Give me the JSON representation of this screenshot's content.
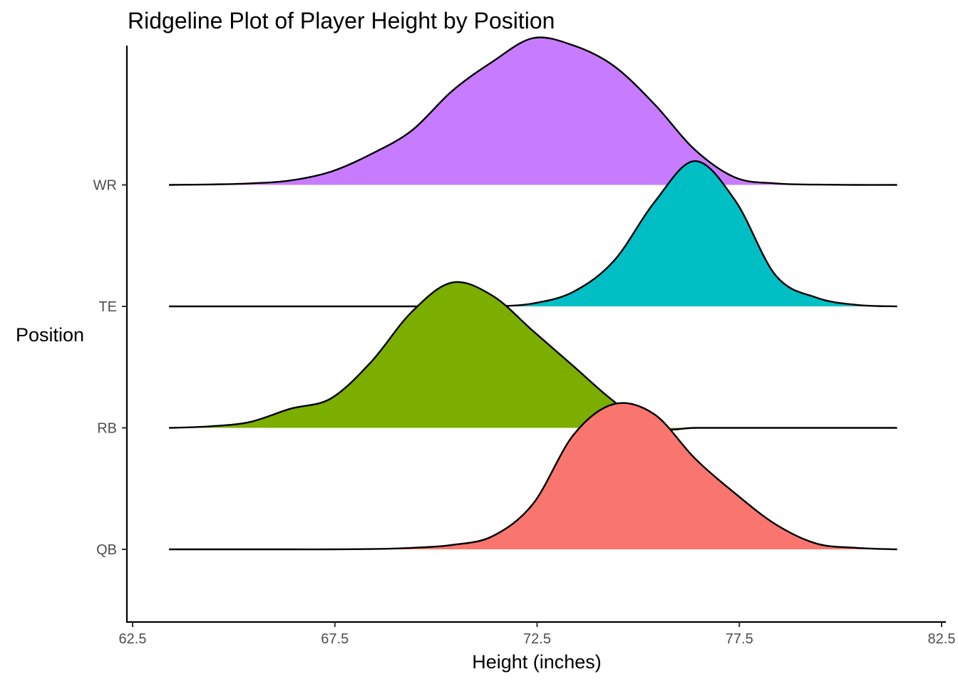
{
  "chart_data": {
    "type": "ridgeline",
    "title": "Ridgeline Plot of Player Height by Position",
    "xlabel": "Height (inches)",
    "ylabel": "Position",
    "xlim": [
      62.5,
      82.5
    ],
    "x_ticks": [
      "62.5",
      "67.5",
      "72.5",
      "77.5",
      "82.5"
    ],
    "x_tick_values": [
      62.5,
      67.5,
      72.5,
      77.5,
      82.5
    ],
    "grid": false,
    "legend": "none",
    "categories": [
      "QB",
      "RB",
      "TE",
      "WR"
    ],
    "x": [
      63.4,
      64.4,
      65.4,
      66.4,
      67.4,
      68.4,
      69.4,
      70.4,
      71.4,
      72.4,
      73.4,
      74.4,
      75.4,
      76.4,
      77.4,
      78.4,
      79.4,
      80.4,
      81.4
    ],
    "series": [
      {
        "name": "QB",
        "color": "#F8766D",
        "density": [
          0.0,
          0.0,
          0.0,
          0.0,
          0.0,
          0.002,
          0.01,
          0.03,
          0.09,
          0.31,
          0.78,
          0.99,
          0.92,
          0.62,
          0.38,
          0.17,
          0.04,
          0.01,
          0.0
        ]
      },
      {
        "name": "RB",
        "color": "#7CAE00",
        "density": [
          0.0,
          0.01,
          0.04,
          0.13,
          0.2,
          0.45,
          0.79,
          0.99,
          0.9,
          0.66,
          0.42,
          0.18,
          0.0,
          0.0,
          0.0,
          0.0,
          0.0,
          0.0,
          0.0
        ]
      },
      {
        "name": "TE",
        "color": "#00BFC4",
        "density": [
          0.0,
          0.0,
          0.0,
          0.0,
          0.0,
          0.0,
          0.0,
          0.0,
          0.0,
          0.02,
          0.1,
          0.31,
          0.71,
          0.99,
          0.72,
          0.21,
          0.06,
          0.01,
          0.0
        ]
      },
      {
        "name": "WR",
        "color": "#C77CFF",
        "density": [
          0.0,
          0.003,
          0.01,
          0.03,
          0.09,
          0.21,
          0.37,
          0.64,
          0.84,
          1.0,
          0.95,
          0.81,
          0.55,
          0.24,
          0.05,
          0.01,
          0.002,
          0.0,
          0.0
        ]
      }
    ]
  }
}
